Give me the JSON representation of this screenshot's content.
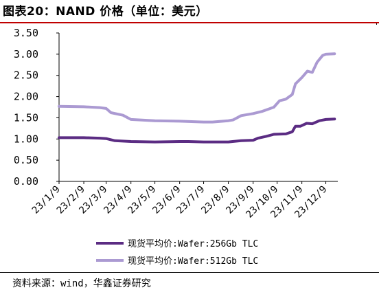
{
  "title": "图表20：NAND 价格（单位：美元）",
  "source": "资料来源：wind，华鑫证券研究",
  "colors": {
    "series_256": "#5b2c83",
    "series_512": "#ab9ad2",
    "title_rule": "#c00000"
  },
  "chart_data": {
    "type": "line",
    "title": "",
    "xlabel": "",
    "ylabel": "",
    "ylim": [
      0,
      3.5
    ],
    "y_ticks": [
      "0.00",
      "0.50",
      "1.00",
      "1.50",
      "2.00",
      "2.50",
      "3.00",
      "3.50"
    ],
    "x_tick_labels": [
      "23/1/9",
      "23/2/9",
      "23/3/9",
      "23/4/9",
      "23/5/9",
      "23/6/9",
      "23/7/9",
      "23/8/9",
      "23/9/9",
      "23/10/9",
      "23/11/9",
      "23/12/9"
    ],
    "grid": false,
    "legend_position": "bottom",
    "series": [
      {
        "name": "现货平均价:Wafer:256Gb TLC",
        "points": [
          [
            "2023-01-09",
            1.03
          ],
          [
            "2023-02-09",
            1.03
          ],
          [
            "2023-03-01",
            1.02
          ],
          [
            "2023-03-09",
            1.01
          ],
          [
            "2023-03-20",
            0.96
          ],
          [
            "2023-04-09",
            0.94
          ],
          [
            "2023-05-09",
            0.93
          ],
          [
            "2023-06-09",
            0.94
          ],
          [
            "2023-06-20",
            0.94
          ],
          [
            "2023-07-09",
            0.93
          ],
          [
            "2023-08-09",
            0.93
          ],
          [
            "2023-08-25",
            0.96
          ],
          [
            "2023-09-09",
            0.97
          ],
          [
            "2023-09-15",
            1.02
          ],
          [
            "2023-09-25",
            1.06
          ],
          [
            "2023-10-05",
            1.11
          ],
          [
            "2023-10-20",
            1.12
          ],
          [
            "2023-10-28",
            1.17
          ],
          [
            "2023-11-01",
            1.3
          ],
          [
            "2023-11-07",
            1.3
          ],
          [
            "2023-11-15",
            1.37
          ],
          [
            "2023-11-22",
            1.36
          ],
          [
            "2023-12-01",
            1.43
          ],
          [
            "2023-12-09",
            1.46
          ],
          [
            "2023-12-20",
            1.47
          ]
        ]
      },
      {
        "name": "现货平均价:Wafer:512Gb TLC",
        "points": [
          [
            "2023-01-09",
            1.77
          ],
          [
            "2023-02-09",
            1.76
          ],
          [
            "2023-03-01",
            1.74
          ],
          [
            "2023-03-09",
            1.72
          ],
          [
            "2023-03-15",
            1.62
          ],
          [
            "2023-03-30",
            1.56
          ],
          [
            "2023-04-09",
            1.46
          ],
          [
            "2023-05-09",
            1.43
          ],
          [
            "2023-06-09",
            1.42
          ],
          [
            "2023-07-09",
            1.4
          ],
          [
            "2023-07-20",
            1.4
          ],
          [
            "2023-08-09",
            1.43
          ],
          [
            "2023-08-15",
            1.45
          ],
          [
            "2023-08-25",
            1.55
          ],
          [
            "2023-09-09",
            1.6
          ],
          [
            "2023-09-20",
            1.65
          ],
          [
            "2023-10-05",
            1.75
          ],
          [
            "2023-10-12",
            1.9
          ],
          [
            "2023-10-20",
            1.94
          ],
          [
            "2023-10-28",
            2.05
          ],
          [
            "2023-11-01",
            2.3
          ],
          [
            "2023-11-09",
            2.45
          ],
          [
            "2023-11-16",
            2.6
          ],
          [
            "2023-11-22",
            2.57
          ],
          [
            "2023-11-28",
            2.81
          ],
          [
            "2023-12-05",
            2.97
          ],
          [
            "2023-12-09",
            3.0
          ],
          [
            "2023-12-20",
            3.01
          ]
        ]
      }
    ]
  }
}
